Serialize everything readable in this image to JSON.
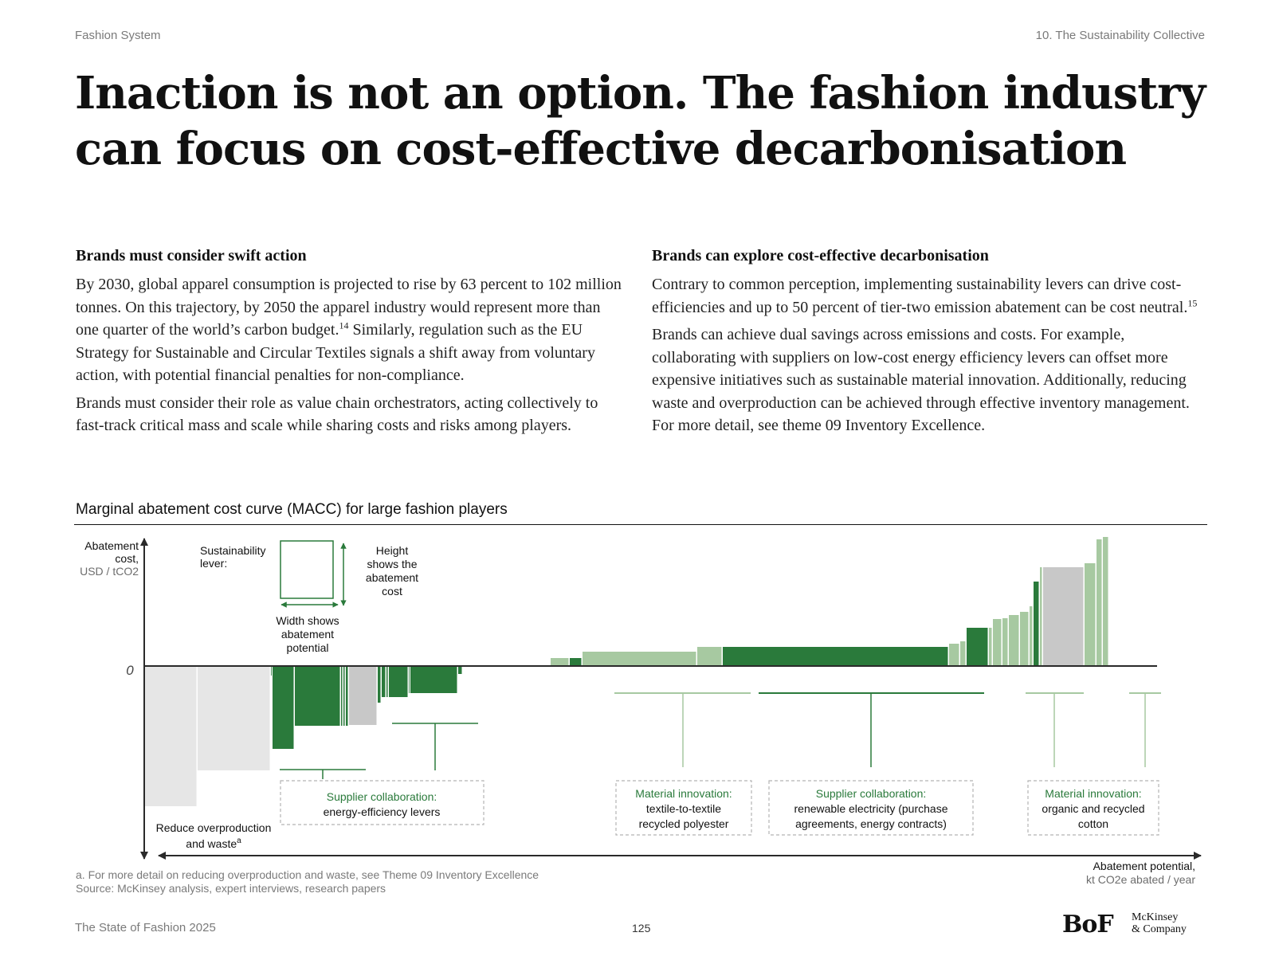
{
  "header": {
    "left": "Fashion System",
    "right": "10. The Sustainability Collective"
  },
  "title_lines": [
    "Inaction is not an option. The fashion industry",
    "can focus on cost-effective decarbonisation"
  ],
  "left_col": {
    "heading": "Brands must consider swift action",
    "p1": "By 2030, global apparel consumption is projected to rise by 63 percent to 102 million tonnes. On this trajectory, by 2050 the apparel industry would represent more than one quarter of the world’s carbon budget.",
    "p1_sup": "14",
    "p1_tail": " Similarly, regulation such as the EU Strategy for Sustainable and Circular Textiles signals a shift away from voluntary action, with potential financial penalties for non-compliance.",
    "p2": "Brands must consider their role as value chain orchestrators, acting collectively to fast-track critical mass and scale while sharing costs and risks among players."
  },
  "right_col": {
    "heading": "Brands can explore cost-effective decarbonisation",
    "p1": "Contrary to common perception, implementing sustainability levers can drive cost-efficiencies and up to 50 percent of tier-two emission abatement can be cost neutral.",
    "p1_sup": "15",
    "p2": "Brands can achieve dual savings across emissions and costs. For example, collaborating with suppliers on low-cost energy efficiency levers can offset more expensive initiatives such as sustainable material innovation. Additionally, reducing waste and overproduction can be achieved through effective inventory management. For more detail, see theme 09 Inventory Excellence."
  },
  "chart_title": "Marginal abatement cost curve (MACC) for large fashion players",
  "chart_data": {
    "type": "bar",
    "title": "Marginal abatement cost curve (MACC) for large fashion players",
    "ylabel_lines": [
      "Abatement",
      "cost,"
    ],
    "yunit": "USD / tCO2",
    "xlabel": "Abatement potential,",
    "xunit": "kt CO2e abated / year",
    "zero_label": "0",
    "note": "Relative values estimated from the figure (axes carry no numeric ticks); width = abatement potential, height = abatement cost",
    "colors": {
      "dark_green": "#2a7a3b",
      "light_green": "#a7c9a1",
      "grey": "#c8c8c8",
      "light_grey": "#e6e6e6",
      "supplier_label": "#2a7a3b"
    },
    "bars": [
      {
        "width": 6.6,
        "value": -17.6,
        "color": "light_grey"
      },
      {
        "width": 9.2,
        "value": -13.1,
        "color": "light_grey"
      },
      {
        "width": 0.2,
        "value": -1.2,
        "color": "dark_green"
      },
      {
        "width": 2.8,
        "value": -10.4,
        "color": "dark_green"
      },
      {
        "width": 5.8,
        "value": -7.5,
        "color": "dark_green"
      },
      {
        "width": 0.3,
        "value": -7.5,
        "color": "dark_green"
      },
      {
        "width": 0.3,
        "value": -7.5,
        "color": "dark_green"
      },
      {
        "width": 0.4,
        "value": -7.5,
        "color": "dark_green"
      },
      {
        "width": 3.6,
        "value": -7.4,
        "color": "grey"
      },
      {
        "width": 0.5,
        "value": -4.6,
        "color": "dark_green"
      },
      {
        "width": 0.6,
        "value": -3.9,
        "color": "dark_green"
      },
      {
        "width": 0.3,
        "value": -3.9,
        "color": "dark_green"
      },
      {
        "width": 2.5,
        "value": -3.9,
        "color": "dark_green"
      },
      {
        "width": 0.2,
        "value": -3.4,
        "color": "dark_green"
      },
      {
        "width": 6.0,
        "value": -3.4,
        "color": "dark_green"
      },
      {
        "width": 0.6,
        "value": -1.0,
        "color": "dark_green"
      },
      {
        "width": 11.0,
        "value": 0.0,
        "color": "light_green"
      },
      {
        "width": 2.4,
        "value": 1.0,
        "color": "light_green"
      },
      {
        "width": 1.6,
        "value": 1.0,
        "color": "dark_green"
      },
      {
        "width": 14.4,
        "value": 1.8,
        "color": "light_green"
      },
      {
        "width": 3.2,
        "value": 2.4,
        "color": "light_green"
      },
      {
        "width": 28.4,
        "value": 2.4,
        "color": "dark_green"
      },
      {
        "width": 1.4,
        "value": 2.8,
        "color": "light_green"
      },
      {
        "width": 0.8,
        "value": 3.1,
        "color": "light_green"
      },
      {
        "width": 2.8,
        "value": 4.8,
        "color": "dark_green"
      },
      {
        "width": 0.5,
        "value": 4.8,
        "color": "light_green"
      },
      {
        "width": 1.2,
        "value": 5.9,
        "color": "light_green"
      },
      {
        "width": 0.8,
        "value": 6.0,
        "color": "light_green"
      },
      {
        "width": 1.4,
        "value": 6.4,
        "color": "light_green"
      },
      {
        "width": 1.2,
        "value": 6.8,
        "color": "light_green"
      },
      {
        "width": 0.5,
        "value": 7.5,
        "color": "light_green"
      },
      {
        "width": 0.8,
        "value": 10.6,
        "color": "dark_green"
      },
      {
        "width": 0.4,
        "value": 12.4,
        "color": "light_green"
      },
      {
        "width": 5.2,
        "value": 12.4,
        "color": "grey"
      },
      {
        "width": 1.5,
        "value": 12.9,
        "color": "light_green"
      },
      {
        "width": 0.8,
        "value": 15.9,
        "color": "light_green"
      },
      {
        "width": 0.8,
        "value": 16.2,
        "color": "light_green"
      }
    ],
    "legend_key": {
      "label_lines": [
        "Sustainability",
        "lever:"
      ],
      "height_lines": [
        "Height",
        "shows the",
        "abatement",
        "cost"
      ],
      "width_lines": [
        "Width shows",
        "abatement",
        "potential"
      ]
    },
    "annotations": [
      {
        "id": "reduce-overproduction",
        "lines": [
          "Reduce overproduction",
          "and waste"
        ],
        "sup": "a"
      },
      {
        "id": "supplier-energy-efficiency",
        "heading": "Supplier collaboration:",
        "lines": [
          "energy-efficiency levers"
        ],
        "color": "dark_green"
      },
      {
        "id": "material-textile-to-textile",
        "heading": "Material innovation:",
        "lines": [
          "textile-to-textile",
          "recycled polyester"
        ],
        "color": "light_green"
      },
      {
        "id": "supplier-renewable-electricity",
        "heading": "Supplier collaboration:",
        "lines": [
          "renewable electricity (purchase",
          "agreements, energy contracts)"
        ],
        "color": "dark_green"
      },
      {
        "id": "material-organic-cotton",
        "heading": "Material innovation:",
        "lines": [
          "organic and recycled",
          "cotton"
        ],
        "color": "light_green"
      }
    ]
  },
  "footnotes": {
    "note_a": "a. For more detail on reducing overproduction and waste, see Theme 09 Inventory Excellence",
    "source": "Source: McKinsey analysis, expert interviews, research papers"
  },
  "footer": {
    "publication": "The State of Fashion 2025",
    "page_number": "125"
  },
  "brands": {
    "bof": "BoF",
    "mckinsey_lines": [
      "McKinsey",
      "& Company"
    ]
  }
}
